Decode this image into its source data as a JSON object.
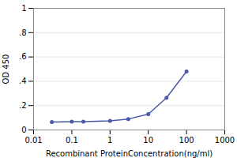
{
  "chart_data": {
    "type": "line",
    "xlabel": "Recombinant ProteinConcentration(ng/ml)",
    "ylabel": "OD 450",
    "x": [
      0.03,
      0.1,
      0.2,
      1.0,
      3.0,
      10.0,
      30.0,
      100.0
    ],
    "values": [
      0.065,
      0.068,
      0.068,
      0.075,
      0.09,
      0.13,
      0.265,
      0.48
    ],
    "color": "#4a5aa8",
    "marker": "circle",
    "log": "x",
    "xlim": [
      0.01,
      1000
    ],
    "ylim": [
      0,
      1
    ],
    "xticks": [
      0.01,
      0.1,
      1,
      10,
      100,
      1000
    ],
    "yticks": [
      0,
      {
        "value": 0.2,
        "label": ".2"
      },
      {
        "value": 0.4,
        "label": ".4"
      },
      {
        "value": 0.6,
        "label": ".6"
      },
      {
        "value": 0.8,
        "label": ".8"
      },
      1
    ],
    "grid": "y"
  }
}
